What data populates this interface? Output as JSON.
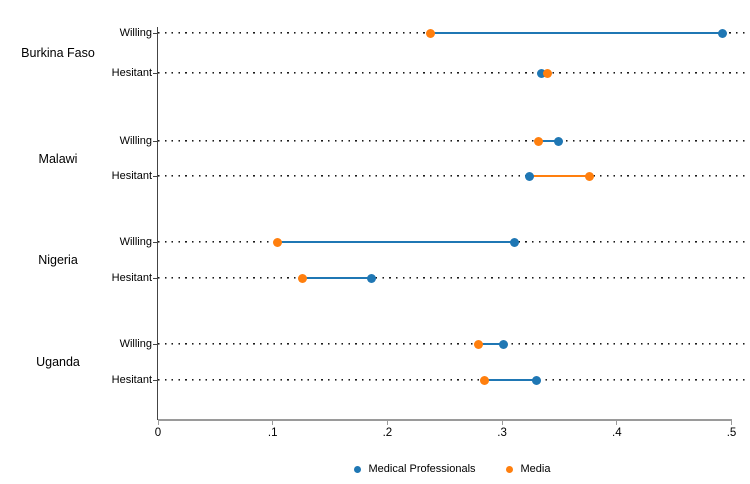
{
  "chart_data": {
    "type": "dumbbell_dot_plot",
    "title": "",
    "x_axis": {
      "range": [
        0,
        0.5
      ],
      "tick_values": [
        0,
        0.1,
        0.2,
        0.3,
        0.4,
        0.5
      ],
      "tick_labels": [
        "0",
        ".1",
        ".2",
        ".3",
        ".4",
        ".5"
      ]
    },
    "series": [
      {
        "name": "Medical Professionals",
        "color": "#1f77b4"
      },
      {
        "name": "Media",
        "color": "#ff7f0e"
      }
    ],
    "groups": [
      {
        "country": "Burkina Faso",
        "rows": [
          {
            "label": "Willing",
            "values": [
              0.492,
              0.238
            ]
          },
          {
            "label": "Hesitant",
            "values": [
              0.334,
              0.34
            ]
          }
        ]
      },
      {
        "country": "Malawi",
        "rows": [
          {
            "label": "Willing",
            "values": [
              0.349,
              0.332
            ]
          },
          {
            "label": "Hesitant",
            "values": [
              0.324,
              0.376
            ]
          }
        ]
      },
      {
        "country": "Nigeria",
        "rows": [
          {
            "label": "Willing",
            "values": [
              0.311,
              0.104
            ]
          },
          {
            "label": "Hesitant",
            "values": [
              0.186,
              0.126
            ]
          }
        ]
      },
      {
        "country": "Uganda",
        "rows": [
          {
            "label": "Willing",
            "values": [
              0.301,
              0.279
            ]
          },
          {
            "label": "Hesitant",
            "values": [
              0.33,
              0.285
            ]
          }
        ]
      }
    ],
    "legend": [
      {
        "label": "Medical Professionals",
        "color": "#1f77b4"
      },
      {
        "label": "Media",
        "color": "#ff7f0e"
      }
    ],
    "colors": {
      "medical_professionals": "#1f77b4",
      "media": "#ff7f0e",
      "axis": "#9a9a9a",
      "baseline_dots": "#1a1a1a",
      "y_axis_line": "#444444",
      "background": "#ffffff"
    }
  }
}
